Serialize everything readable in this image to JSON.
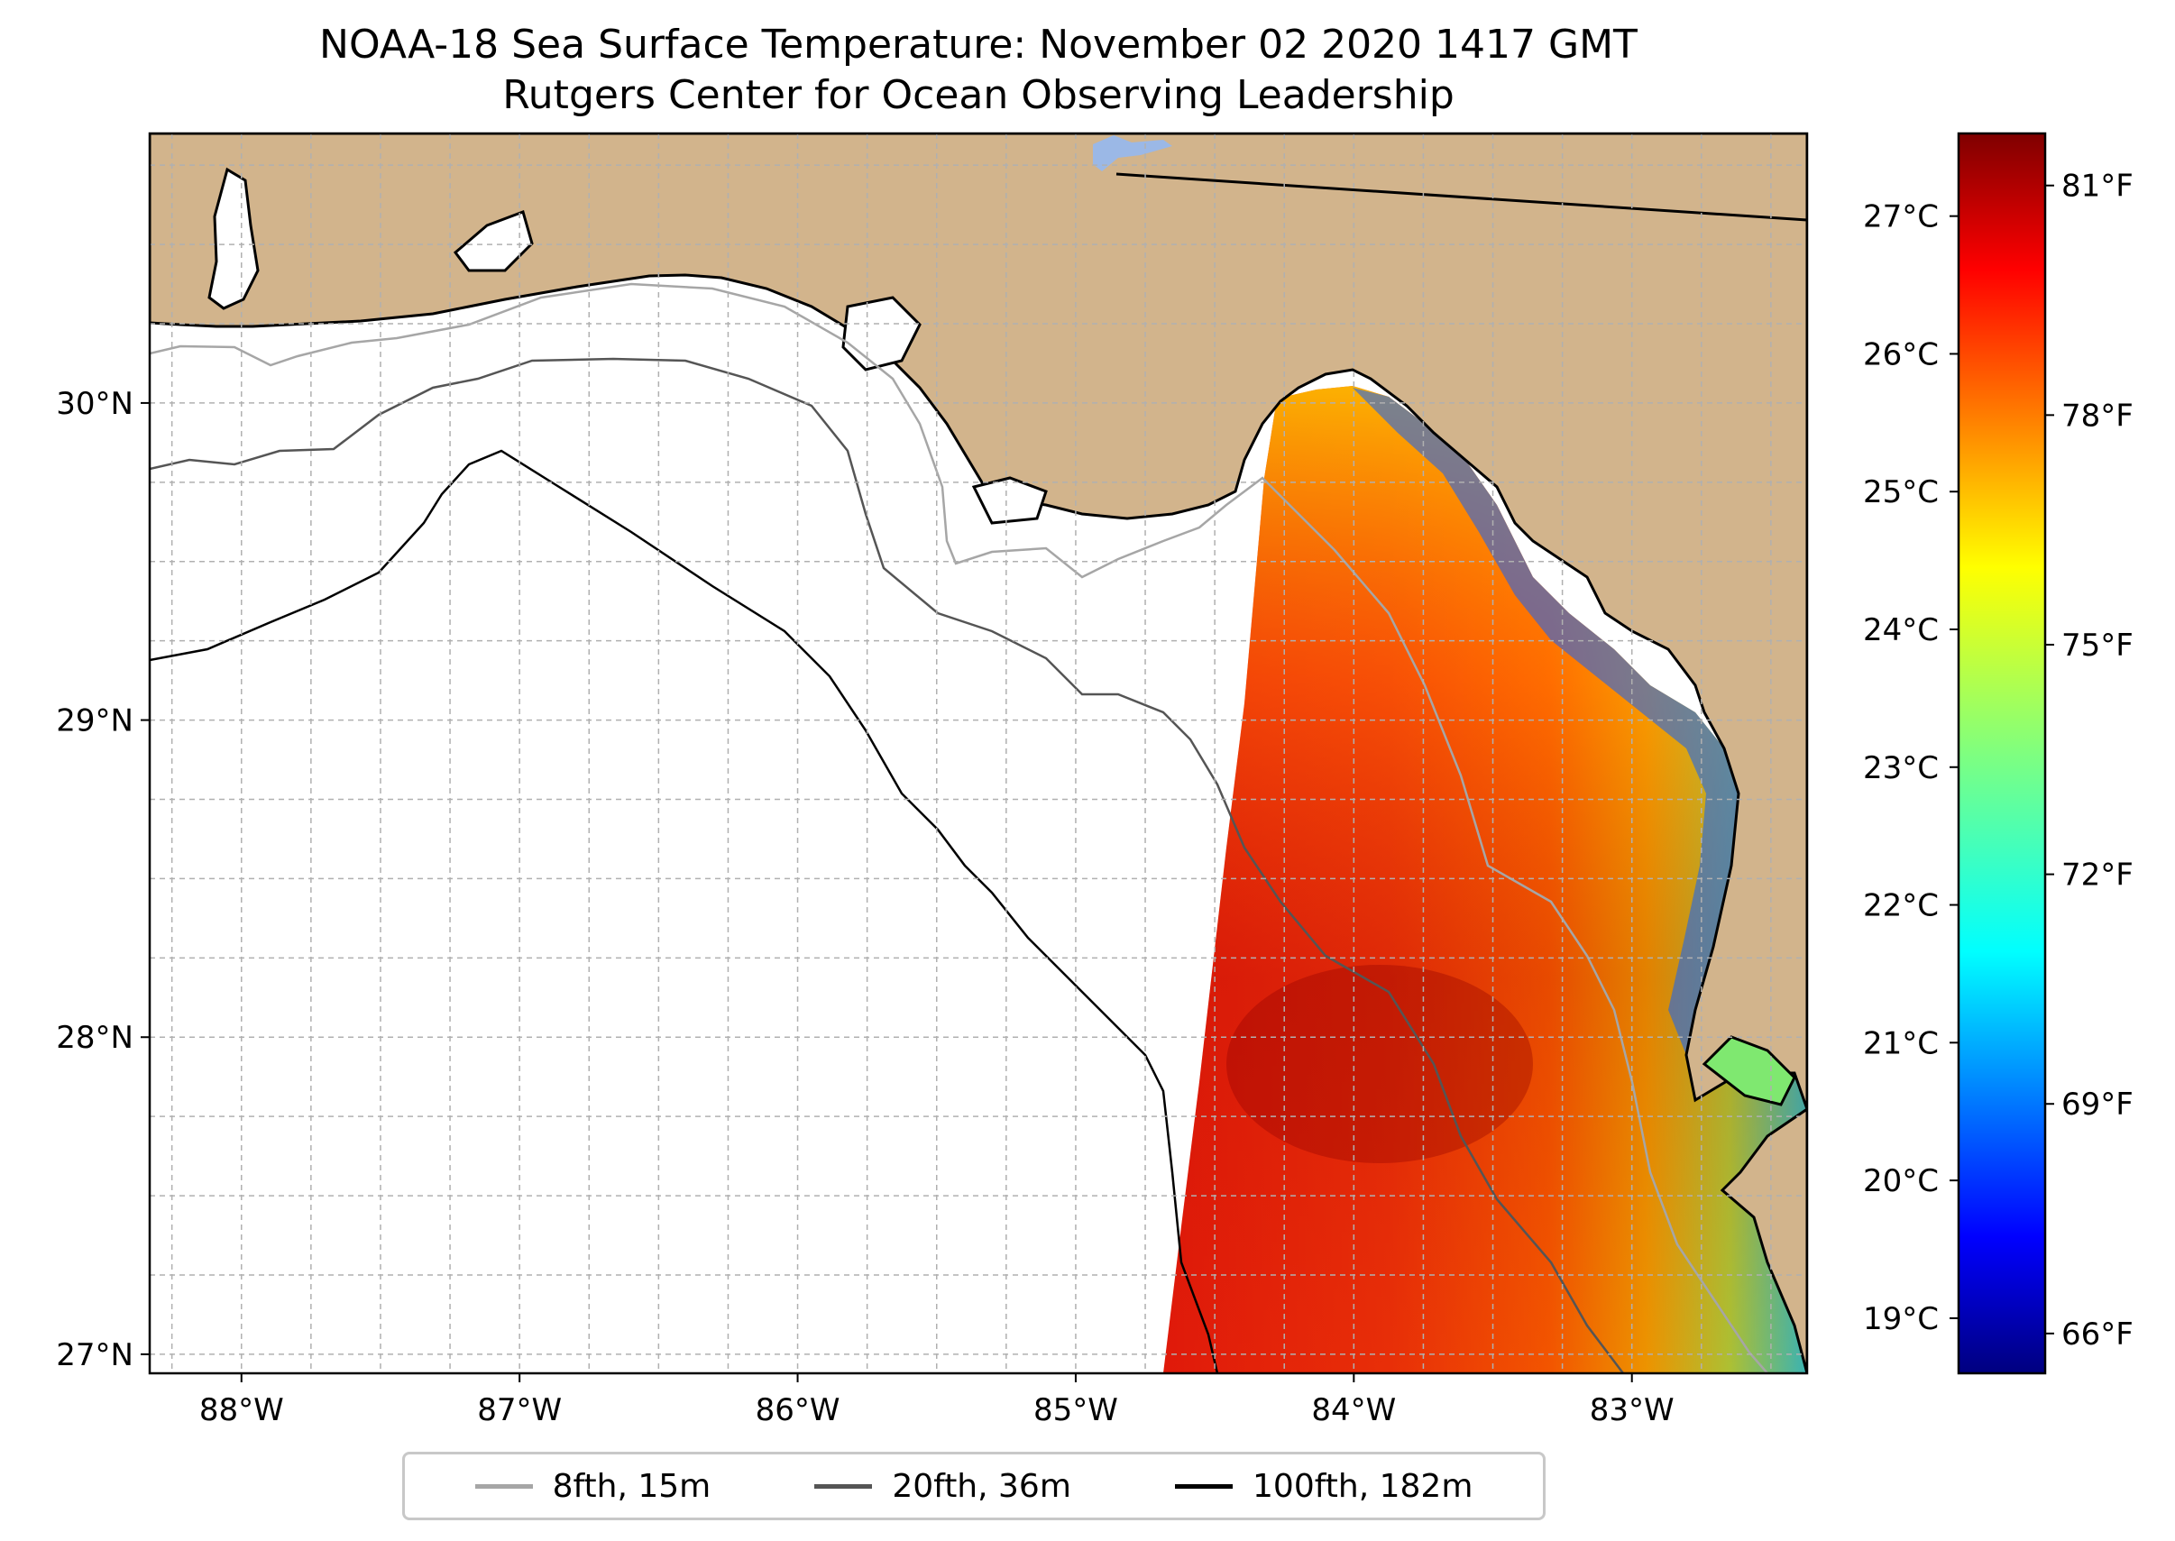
{
  "title": {
    "line1": "NOAA-18 Sea Surface Temperature: November 02 2020 1417 GMT",
    "line2": "Rutgers Center for Ocean Observing Leadership"
  },
  "map": {
    "lon_range": [
      -88.33,
      -82.37
    ],
    "lat_range": [
      26.94,
      30.85
    ],
    "land_color": "#d2b48c",
    "grid": true,
    "lon_ticks": [
      {
        "value": -88,
        "label": "88°W"
      },
      {
        "value": -87,
        "label": "87°W"
      },
      {
        "value": -86,
        "label": "86°W"
      },
      {
        "value": -85,
        "label": "85°W"
      },
      {
        "value": -84,
        "label": "84°W"
      },
      {
        "value": -83,
        "label": "83°W"
      }
    ],
    "lat_ticks": [
      {
        "value": 27,
        "label": "27°N"
      },
      {
        "value": 28,
        "label": "28°N"
      },
      {
        "value": 29,
        "label": "29°N"
      },
      {
        "value": 30,
        "label": "30°N"
      }
    ]
  },
  "colorbar": {
    "colormap": "jet",
    "celsius_range": [
      18.6,
      27.6
    ],
    "celsius_ticks": [
      {
        "value": 19,
        "label": "19°C"
      },
      {
        "value": 20,
        "label": "20°C"
      },
      {
        "value": 21,
        "label": "21°C"
      },
      {
        "value": 22,
        "label": "22°C"
      },
      {
        "value": 23,
        "label": "23°C"
      },
      {
        "value": 24,
        "label": "24°C"
      },
      {
        "value": 25,
        "label": "25°C"
      },
      {
        "value": 26,
        "label": "26°C"
      },
      {
        "value": 27,
        "label": "27°C"
      }
    ],
    "fahrenheit_ticks": [
      {
        "value": 66,
        "label": "66°F"
      },
      {
        "value": 69,
        "label": "69°F"
      },
      {
        "value": 72,
        "label": "72°F"
      },
      {
        "value": 75,
        "label": "75°F"
      },
      {
        "value": 78,
        "label": "78°F"
      },
      {
        "value": 81,
        "label": "81°F"
      }
    ]
  },
  "legend": {
    "items": [
      {
        "label": "8fth, 15m",
        "color": "#a6a6a6"
      },
      {
        "label": "20fth, 36m",
        "color": "#555555"
      },
      {
        "label": "100fth, 182m",
        "color": "#000000"
      }
    ]
  }
}
